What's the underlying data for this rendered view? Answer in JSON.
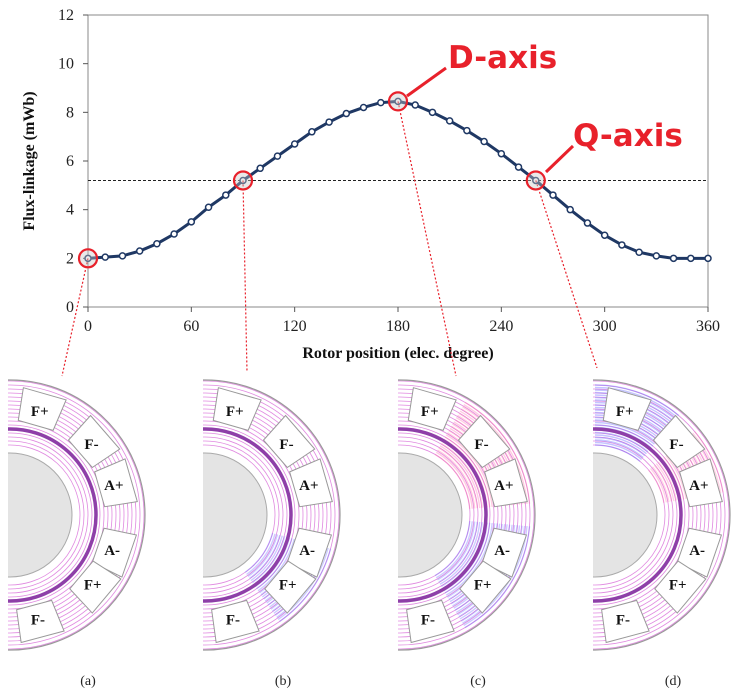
{
  "chart_data": {
    "type": "line",
    "xlabel": "Rotor position (elec. degree)",
    "ylabel": "Flux-linkage (mWb)",
    "x": [
      0,
      10,
      20,
      30,
      40,
      50,
      60,
      70,
      80,
      90,
      100,
      110,
      120,
      130,
      140,
      150,
      160,
      170,
      180,
      190,
      200,
      210,
      220,
      230,
      240,
      250,
      260,
      270,
      280,
      290,
      300,
      310,
      320,
      330,
      340,
      350,
      360
    ],
    "series": [
      {
        "color": "#1f3864",
        "values": [
          2.0,
          2.05,
          2.1,
          2.3,
          2.6,
          3.0,
          3.5,
          4.1,
          4.6,
          5.2,
          5.7,
          6.2,
          6.7,
          7.2,
          7.6,
          7.95,
          8.2,
          8.4,
          8.45,
          8.3,
          8.0,
          7.65,
          7.25,
          6.8,
          6.3,
          5.75,
          5.2,
          4.6,
          4.0,
          3.45,
          2.95,
          2.55,
          2.25,
          2.1,
          2.0,
          2.0,
          2.0
        ]
      }
    ],
    "xlim": [
      0,
      360
    ],
    "xticks": [
      0,
      60,
      120,
      180,
      240,
      300,
      360
    ],
    "ylim": [
      0,
      12
    ],
    "yticks": [
      0,
      2,
      4,
      6,
      8,
      10,
      12
    ],
    "ref_line": 5.2,
    "highlight_x": [
      0,
      90,
      180,
      260
    ],
    "highlight_y": [
      2.0,
      5.2,
      8.45,
      5.2
    ],
    "highlight_color": "#e8212b",
    "annotations": [
      "D-axis",
      "Q-axis"
    ]
  },
  "panels": [
    {
      "caption": "(a)",
      "slots": [
        "F+",
        "F-",
        "A+",
        "A-",
        "F+",
        "F-"
      ]
    },
    {
      "caption": "(b)",
      "slots": [
        "F+",
        "F-",
        "A+",
        "A-",
        "F+",
        "F-"
      ]
    },
    {
      "caption": "(c)",
      "slots": [
        "F+",
        "F-",
        "A+",
        "A-",
        "F+",
        "F-"
      ]
    },
    {
      "caption": "(d)",
      "slots": [
        "F+",
        "F-",
        "A+",
        "A-",
        "F+",
        "F-"
      ]
    }
  ]
}
